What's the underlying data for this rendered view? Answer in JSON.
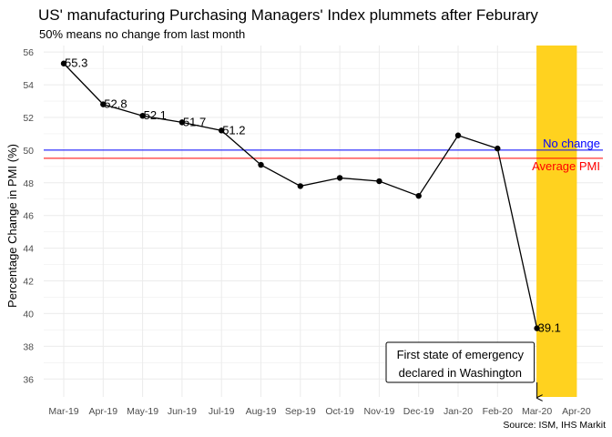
{
  "chart_data": {
    "type": "line",
    "title": "US' manufacturing Purchasing Managers' Index plummets after Feburary",
    "subtitle": "50% means no change from last month",
    "xlabel": "",
    "ylabel": "Percentage Change in PMI (%)",
    "caption": "Source: ISM, IHS Markit",
    "categories": [
      "Mar-19",
      "Apr-19",
      "May-19",
      "Jun-19",
      "Jul-19",
      "Aug-19",
      "Sep-19",
      "Oct-19",
      "Nov-19",
      "Dec-19",
      "Jan-20",
      "Feb-20",
      "Mar-20",
      "Apr-20"
    ],
    "series": [
      {
        "values": [
          55.3,
          52.8,
          52.1,
          51.7,
          51.2,
          49.1,
          47.8,
          48.3,
          48.1,
          47.2,
          50.9,
          50.1,
          39.1,
          null
        ]
      }
    ],
    "data_labels": [
      {
        "category": "Mar-19",
        "text": "55.3"
      },
      {
        "category": "Apr-19",
        "text": "52.8"
      },
      {
        "category": "May-19",
        "text": "52.1"
      },
      {
        "category": "Jun-19",
        "text": "51.7"
      },
      {
        "category": "Jul-19",
        "text": "51.2"
      },
      {
        "category": "Mar-20",
        "text": "39.1"
      }
    ],
    "ylim": [
      34.9,
      56.4
    ],
    "yticks": [
      36,
      38,
      40,
      42,
      44,
      46,
      48,
      50,
      52,
      54,
      56
    ],
    "grid": true,
    "reference_lines": [
      {
        "value": 50.0,
        "label": "No change",
        "color": "#0000ff"
      },
      {
        "value": 49.5,
        "label": "Average PMI",
        "color": "#ff0000"
      }
    ],
    "highlight_band": {
      "from": "Mar-20",
      "to": "Apr-20",
      "color": "#ffd21f"
    },
    "annotation": {
      "lines": [
        "First state of emergency",
        "declared in Washington"
      ],
      "target_category": "Mar-20"
    },
    "colors": {
      "line": "#000000",
      "grid": "#ebebeb",
      "background": "#ffffff"
    }
  }
}
